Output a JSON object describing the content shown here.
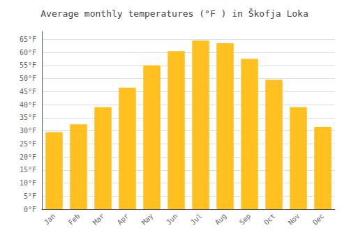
{
  "chart_data": {
    "type": "bar",
    "title": "Average monthly temperatures (°F ) in Škofja Loka",
    "categories": [
      "Jan",
      "Feb",
      "Mar",
      "Apr",
      "May",
      "Jun",
      "Jul",
      "Aug",
      "Sep",
      "Oct",
      "Nov",
      "Dec"
    ],
    "values": [
      29.5,
      32.5,
      39.0,
      46.5,
      55.0,
      60.5,
      64.5,
      63.5,
      57.5,
      49.5,
      39.0,
      31.5
    ],
    "color": "#FFC020",
    "ylim": [
      0,
      68
    ],
    "yticks": [
      {
        "value": 0,
        "label": "0°F"
      },
      {
        "value": 5,
        "label": "5°F"
      },
      {
        "value": 10,
        "label": "10°F"
      },
      {
        "value": 15,
        "label": "15°F"
      },
      {
        "value": 20,
        "label": "20°F"
      },
      {
        "value": 25,
        "label": "25°F"
      },
      {
        "value": 30,
        "label": "30°F"
      },
      {
        "value": 35,
        "label": "35°F"
      },
      {
        "value": 40,
        "label": "40°F"
      },
      {
        "value": 45,
        "label": "45°F"
      },
      {
        "value": 50,
        "label": "50°F"
      },
      {
        "value": 55,
        "label": "55°F"
      },
      {
        "value": 60,
        "label": "60°F"
      },
      {
        "value": 65,
        "label": "65°F"
      }
    ],
    "grid": true
  }
}
